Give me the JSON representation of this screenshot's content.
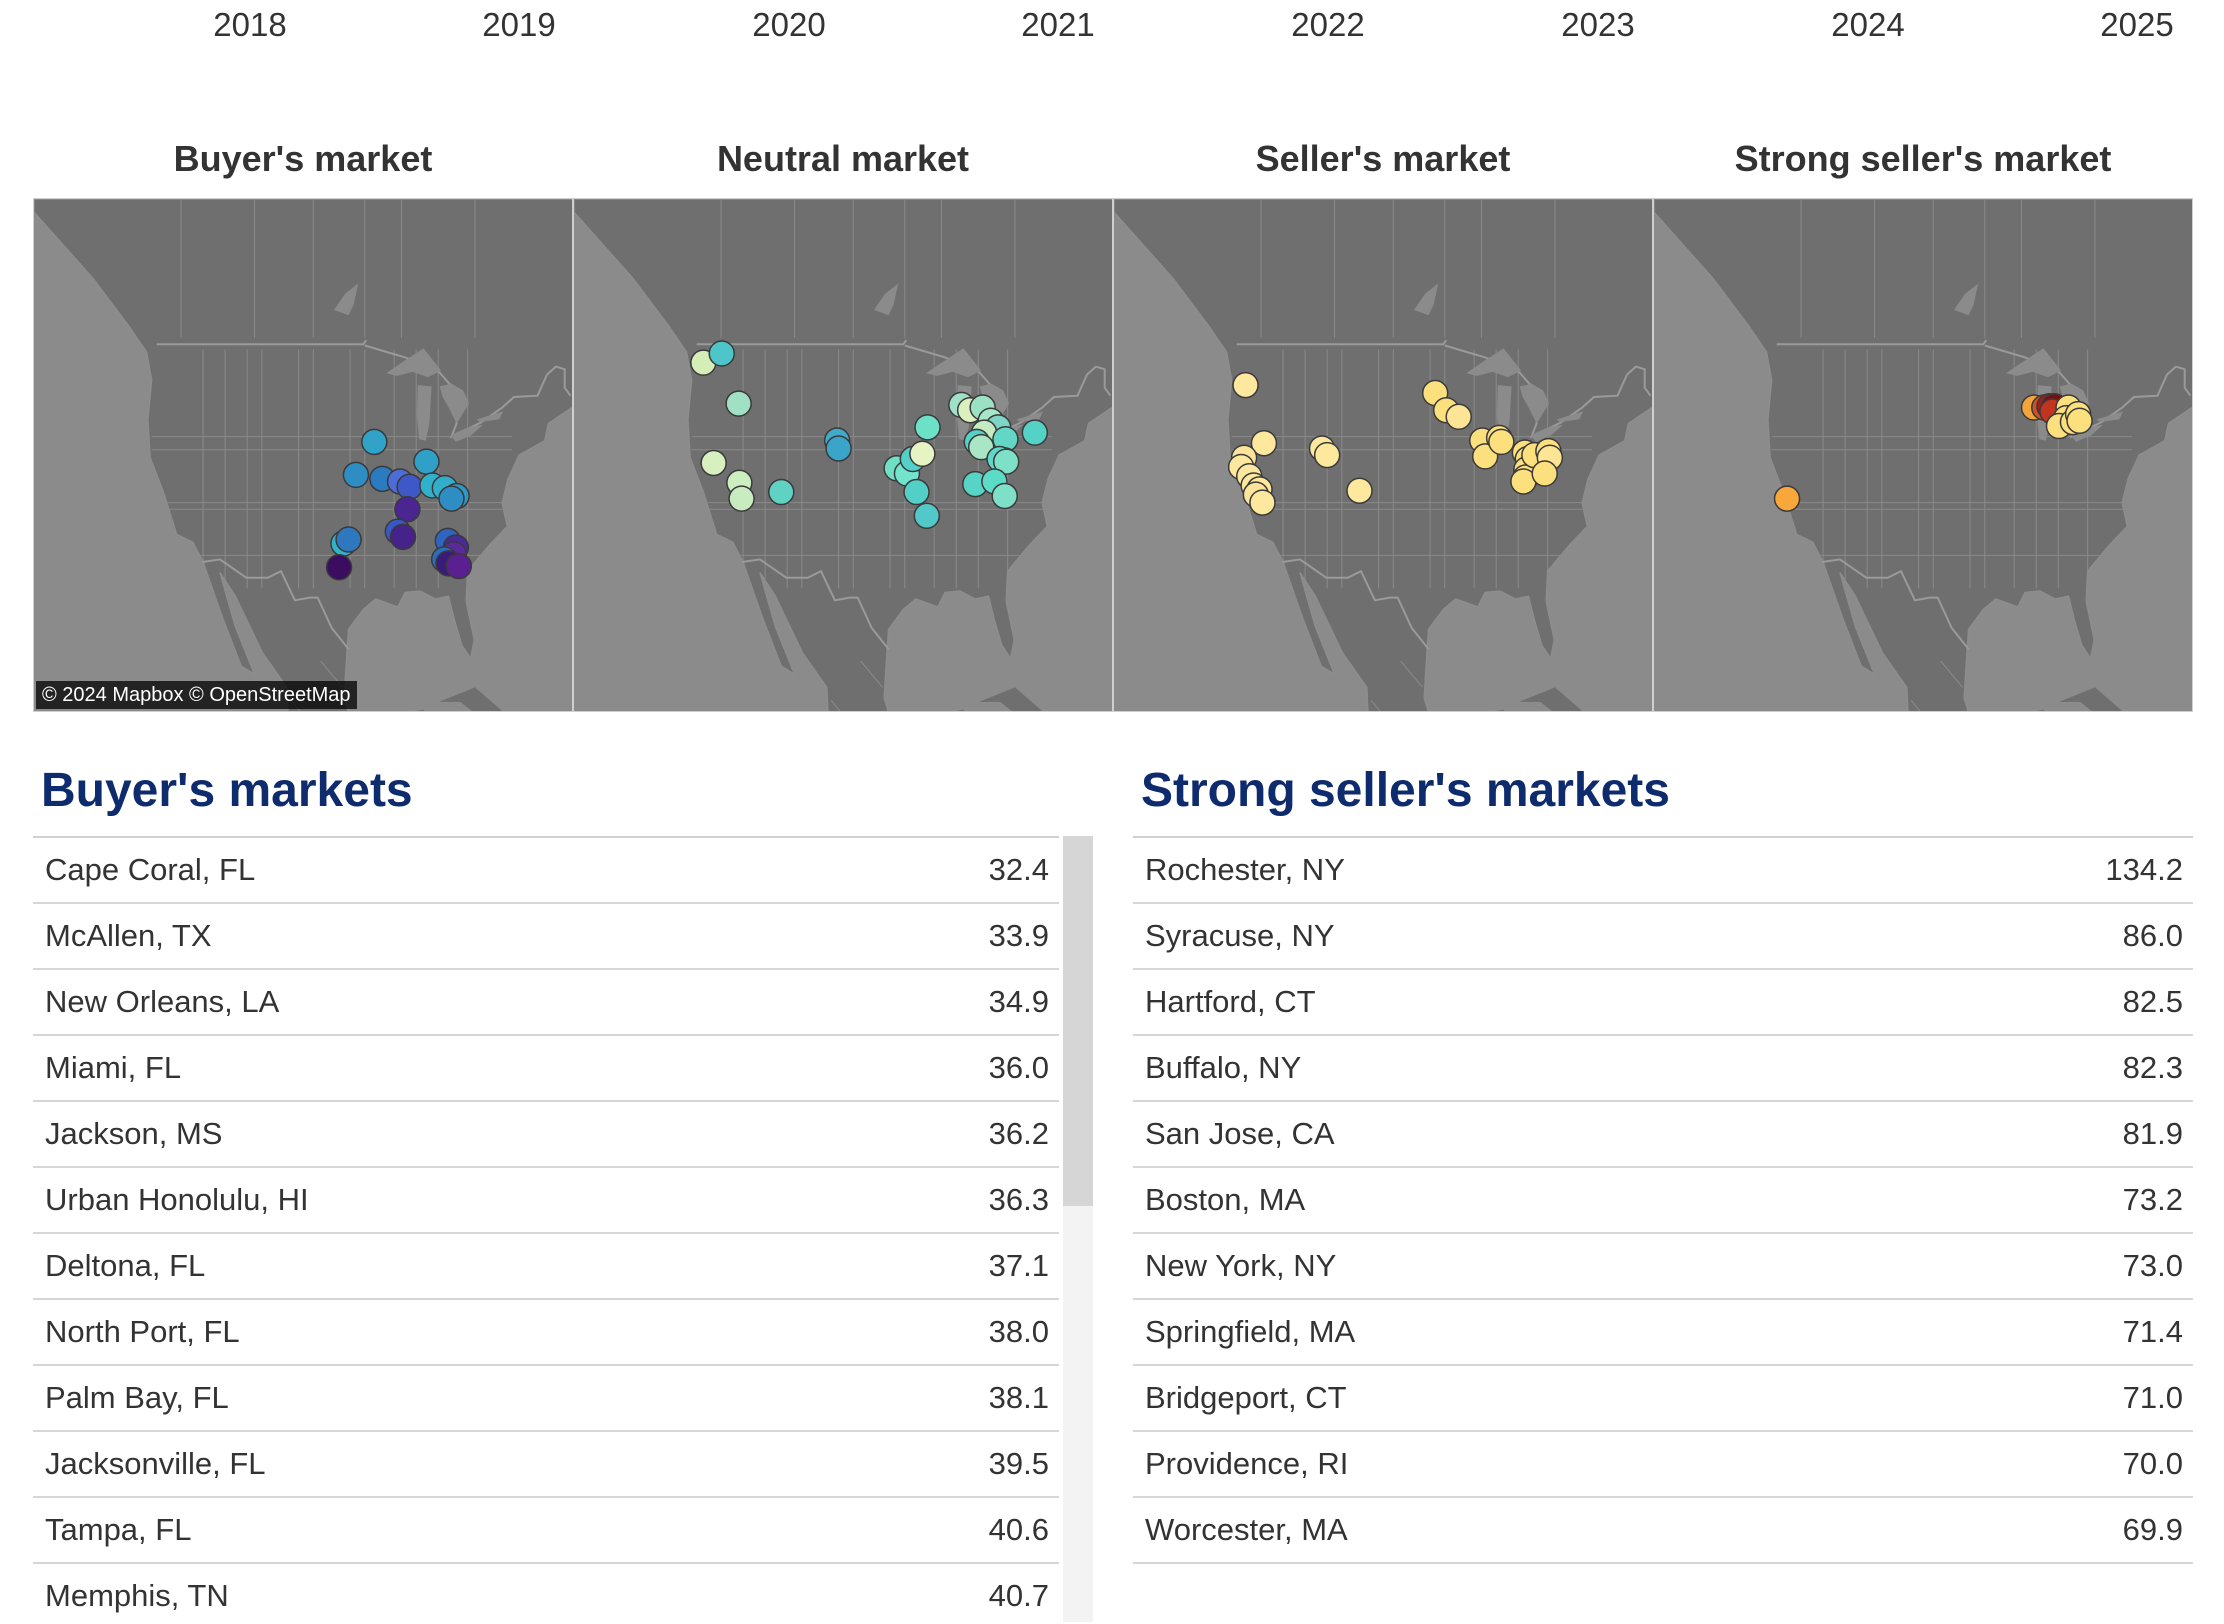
{
  "years": [
    "2018",
    "2019",
    "2020",
    "2021",
    "2022",
    "2023",
    "2024",
    "2025"
  ],
  "panels": [
    {
      "title": "Buyer's market",
      "attribution": "© 2024 Mapbox  © OpenStreetMap",
      "points": [
        [
          -93.7,
          41.6,
          "#31a3c9"
        ],
        [
          -96.2,
          39.1,
          "#2e8ec4"
        ],
        [
          -92.6,
          38.8,
          "#2a7bc0"
        ],
        [
          -86.6,
          40.1,
          "#30a0c8"
        ],
        [
          -90.2,
          38.6,
          "#4e6cd8"
        ],
        [
          -88.9,
          38.2,
          "#3f58c8"
        ],
        [
          -85.8,
          38.3,
          "#31b0cb"
        ],
        [
          -84.1,
          38.1,
          "#32aecb"
        ],
        [
          -82.5,
          37.5,
          "#2e98c5"
        ],
        [
          -83.2,
          37.3,
          "#2e8ec4"
        ],
        [
          -89.2,
          36.5,
          "#4b2590"
        ],
        [
          -97.9,
          33.9,
          "#32b2c6"
        ],
        [
          -97.2,
          34.2,
          "#2f78c0"
        ],
        [
          -90.5,
          34.8,
          "#3759c7"
        ],
        [
          -89.8,
          34.4,
          "#45238a"
        ],
        [
          -98.5,
          32.1,
          "#3a0d60"
        ],
        [
          -83.7,
          34.1,
          "#2f64c0"
        ],
        [
          -82.6,
          33.6,
          "#4a2a96"
        ],
        [
          -82.9,
          33.1,
          "#5a2a98"
        ],
        [
          -84.2,
          32.7,
          "#2a6cc0"
        ],
        [
          -83.6,
          32.4,
          "#3a1a7a"
        ],
        [
          -82.2,
          32.2,
          "#5a1f90"
        ]
      ]
    },
    {
      "title": "Neutral market",
      "points": [
        [
          -122.4,
          47.6,
          "#d3eeb7"
        ],
        [
          -119.9,
          48.3,
          "#4ec5c8"
        ],
        [
          -117.6,
          44.5,
          "#a0e0c5"
        ],
        [
          -121.0,
          40.0,
          "#d8f0c0"
        ],
        [
          -117.5,
          38.5,
          "#cdeec0"
        ],
        [
          -117.2,
          37.3,
          "#c8ecc0"
        ],
        [
          -111.8,
          37.8,
          "#5fd2c4"
        ],
        [
          -104.2,
          41.7,
          "#41a9c9"
        ],
        [
          -104.0,
          41.1,
          "#3aa5c8"
        ],
        [
          -96.1,
          39.6,
          "#6fe0c4"
        ],
        [
          -94.7,
          39.2,
          "#74e4cf"
        ],
        [
          -93.9,
          40.3,
          "#55d0c8"
        ],
        [
          -92.6,
          40.7,
          "#e6f4c3"
        ],
        [
          -91.9,
          42.7,
          "#6de0c8"
        ],
        [
          -93.4,
          37.8,
          "#52d0c8"
        ],
        [
          -92.0,
          36.0,
          "#52c8c8"
        ],
        [
          -87.3,
          44.4,
          "#9fe0c6"
        ],
        [
          -86.1,
          44.0,
          "#dbf0bf"
        ],
        [
          -84.4,
          44.2,
          "#9be2c4"
        ],
        [
          -83.3,
          43.2,
          "#a7e6c6"
        ],
        [
          -82.3,
          42.7,
          "#7fd6c6"
        ],
        [
          -84.2,
          42.3,
          "#c5ecc1"
        ],
        [
          -85.2,
          41.6,
          "#55d2c6"
        ],
        [
          -84.6,
          41.2,
          "#a9e6c6"
        ],
        [
          -81.3,
          41.8,
          "#64d6c6"
        ],
        [
          -81.4,
          40.2,
          "#eaf6c8"
        ],
        [
          -77.3,
          42.3,
          "#55d2c6"
        ],
        [
          -82.1,
          40.3,
          "#5fd8c8"
        ],
        [
          -81.2,
          40.1,
          "#7fe0c8"
        ],
        [
          -85.4,
          38.4,
          "#58d4c6"
        ],
        [
          -82.8,
          38.6,
          "#5cdcc6"
        ],
        [
          -81.4,
          37.5,
          "#7fe0c8"
        ]
      ]
    },
    {
      "title": "Seller's market",
      "points": [
        [
          -122.1,
          45.9,
          "#fde89d"
        ],
        [
          -119.6,
          41.5,
          "#fde89e"
        ],
        [
          -122.3,
          40.4,
          "#fde49a"
        ],
        [
          -122.7,
          39.7,
          "#fde89e"
        ],
        [
          -121.6,
          39.0,
          "#fbe6a0"
        ],
        [
          -121.0,
          38.3,
          "#fde89e"
        ],
        [
          -120.2,
          38.0,
          "#fde89d"
        ],
        [
          -120.7,
          37.6,
          "#fde49a"
        ],
        [
          -119.8,
          37.0,
          "#fde89e"
        ],
        [
          -111.7,
          41.1,
          "#fde89d"
        ],
        [
          -111.0,
          40.6,
          "#fde89d"
        ],
        [
          -106.6,
          37.9,
          "#fde89d"
        ],
        [
          -96.3,
          45.3,
          "#fde07e"
        ],
        [
          -94.8,
          44.0,
          "#fde07e"
        ],
        [
          -93.1,
          43.5,
          "#fee595"
        ],
        [
          -89.9,
          41.7,
          "#fde07e"
        ],
        [
          -89.5,
          40.5,
          "#fde07e"
        ],
        [
          -87.6,
          41.9,
          "#fde07e"
        ],
        [
          -87.3,
          41.6,
          "#fde07e"
        ],
        [
          -84.1,
          40.8,
          "#fde07e"
        ],
        [
          -83.7,
          40.3,
          "#fde07e"
        ],
        [
          -83.9,
          39.5,
          "#fde07e"
        ],
        [
          -84.0,
          38.9,
          "#fde07e"
        ],
        [
          -84.3,
          38.6,
          "#fde07e"
        ],
        [
          -82.8,
          40.6,
          "#fde07e"
        ],
        [
          -80.9,
          40.9,
          "#fde07e"
        ],
        [
          -80.7,
          40.4,
          "#fee595"
        ],
        [
          -81.4,
          39.2,
          "#fde07e"
        ]
      ]
    },
    {
      "title": "Strong seller's market",
      "points": [
        [
          -121.9,
          37.3,
          "#f8a83a"
        ],
        [
          -88.3,
          44.2,
          "#f5a43a"
        ],
        [
          -86.9,
          44.2,
          "#d0502a"
        ],
        [
          -86.2,
          44.3,
          "#a51d16"
        ],
        [
          -85.5,
          44.3,
          "#7a0e0e"
        ],
        [
          -85.8,
          43.9,
          "#c23320"
        ],
        [
          -83.6,
          44.2,
          "#fde07e"
        ],
        [
          -83.9,
          43.4,
          "#fde07e"
        ],
        [
          -84.9,
          42.8,
          "#fde07e"
        ],
        [
          -83.0,
          43.1,
          "#fde07e"
        ],
        [
          -82.3,
          43.7,
          "#fde07e"
        ],
        [
          -82.1,
          43.2,
          "#fde07e"
        ]
      ]
    }
  ],
  "buyers": {
    "title": "Buyer's markets",
    "rows": [
      {
        "name": "Cape Coral, FL",
        "value": "32.4"
      },
      {
        "name": "McAllen, TX",
        "value": "33.9"
      },
      {
        "name": "New Orleans, LA",
        "value": "34.9"
      },
      {
        "name": "Miami, FL",
        "value": "36.0"
      },
      {
        "name": "Jackson, MS",
        "value": "36.2"
      },
      {
        "name": "Urban Honolulu, HI",
        "value": "36.3"
      },
      {
        "name": "Deltona, FL",
        "value": "37.1"
      },
      {
        "name": "North Port, FL",
        "value": "38.0"
      },
      {
        "name": "Palm Bay, FL",
        "value": "38.1"
      },
      {
        "name": "Jacksonville, FL",
        "value": "39.5"
      },
      {
        "name": "Tampa, FL",
        "value": "40.6"
      },
      {
        "name": "Memphis, TN",
        "value": "40.7"
      }
    ]
  },
  "sellers": {
    "title": "Strong seller's markets",
    "rows": [
      {
        "name": "Rochester, NY",
        "value": "134.2"
      },
      {
        "name": "Syracuse, NY",
        "value": "86.0"
      },
      {
        "name": "Hartford, CT",
        "value": "82.5"
      },
      {
        "name": "Buffalo, NY",
        "value": "82.3"
      },
      {
        "name": "San Jose, CA",
        "value": "81.9"
      },
      {
        "name": "Boston, MA",
        "value": "73.2"
      },
      {
        "name": "New York, NY",
        "value": "73.0"
      },
      {
        "name": "Springfield, MA",
        "value": "71.4"
      },
      {
        "name": "Bridgeport, CT",
        "value": "71.0"
      },
      {
        "name": "Providence, RI",
        "value": "70.0"
      },
      {
        "name": "Worcester, MA",
        "value": "69.9"
      }
    ]
  }
}
